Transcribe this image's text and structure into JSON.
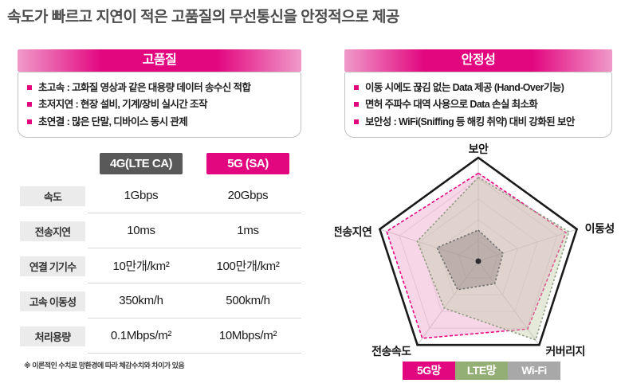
{
  "title": "속도가 빠르고 지연이 적은 고품질의 무선통신을 안정적으로 제공",
  "colors": {
    "accent_magenta": "#e2067f",
    "header_gradient_light": "#f09ac9",
    "col_4g_bg": "#595959",
    "row_label_bg": "#ebebeb",
    "lte_green": "#94af76",
    "wifi_gray": "#a8a8a8"
  },
  "quality_panel": {
    "header": "고품질",
    "bullets": [
      "초고속 : 고화질 영상과 같은 대용량 데이터 송수신 적합",
      "초저지연 : 현장 설비, 기계/장비 실시간 조작",
      "초연결 : 많은 단말, 디바이스 동시 관제"
    ]
  },
  "stability_panel": {
    "header": "안정성",
    "bullets": [
      "이동 시에도 끊김 없는 Data 제공 (Hand-Over기능)",
      "면허 주파수 대역 사용으로 Data 손실 최소화",
      "보안성 : WiFi(Sniffing 등 해킹 취약) 대비 강화된 보안"
    ]
  },
  "chart_data": [
    {
      "type": "radar",
      "title": "",
      "axes": [
        "보안",
        "이동성",
        "커버리지",
        "전송속도",
        "전송지연"
      ],
      "range": [
        0,
        1
      ],
      "grid_rings": [
        0.2,
        0.4,
        0.6,
        0.8
      ],
      "legend_position": "bottom",
      "series": [
        {
          "name": "5G망",
          "color": "#e5067f",
          "fill": "rgba(238,164,205,0.45)",
          "dash": "4 2.5",
          "values": [
            0.85,
            0.89,
            0.81,
            0.92,
            0.93
          ]
        },
        {
          "name": "LTE망",
          "color": "#8f9b80",
          "fill": "rgba(196,206,170,0.45)",
          "dash": "2.5 2.5",
          "values": [
            0.81,
            0.92,
            0.94,
            0.56,
            0.62
          ]
        },
        {
          "name": "Wi-Fi",
          "color": "#6f6f6f",
          "fill": "rgba(110,95,100,0.30)",
          "dash": "2.5 2.5",
          "values": [
            0.3,
            0.25,
            0.27,
            0.34,
            0.42
          ]
        }
      ],
      "legend": [
        {
          "label": "5G망",
          "bg": "#e2067f"
        },
        {
          "label": "LTE망",
          "bg": "#94af76"
        },
        {
          "label": "Wi-Fi",
          "bg": "#a8a8a8"
        }
      ]
    },
    {
      "type": "table",
      "columns": [
        "4G(LTE CA)",
        "5G (SA)"
      ],
      "row_labels": [
        "속도",
        "전송지연",
        "연결 기기수",
        "고속 이동성",
        "처리용량"
      ],
      "rows": [
        [
          "1Gbps",
          "20Gbps"
        ],
        [
          "10ms",
          "1ms"
        ],
        [
          "10만개/km²",
          "100만개/km²"
        ],
        [
          "350km/h",
          "500km/h"
        ],
        [
          "0.1Mbps/m²",
          "10Mbps/m²"
        ]
      ],
      "footnote": "※ 이론적인 수치로 망환경에 따라 체감수치와 차이가 있음"
    }
  ]
}
